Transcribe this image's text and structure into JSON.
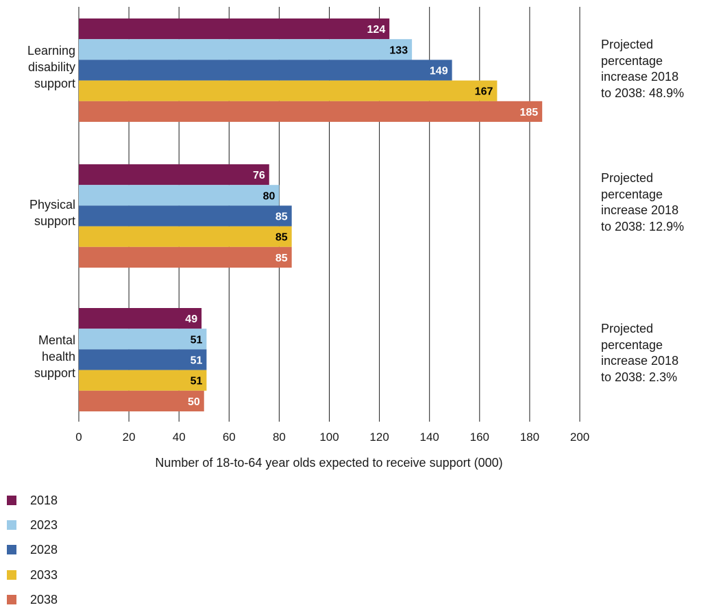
{
  "chart_data": {
    "type": "bar",
    "orientation": "horizontal",
    "categories": [
      "Learning disability support",
      "Physical support",
      "Mental health support"
    ],
    "category_lines": [
      [
        "Learning",
        "disability",
        "support"
      ],
      [
        "Physical",
        "support"
      ],
      [
        "Mental",
        "health",
        "support"
      ]
    ],
    "series": [
      {
        "name": "2018",
        "values": [
          124,
          76,
          49
        ],
        "color": "#7a1a52",
        "label_color": "#ffffff"
      },
      {
        "name": "2023",
        "values": [
          133,
          80,
          51
        ],
        "color": "#9ccbe8",
        "label_color": "#000000"
      },
      {
        "name": "2028",
        "values": [
          149,
          85,
          51
        ],
        "color": "#3b66a5",
        "label_color": "#ffffff"
      },
      {
        "name": "2033",
        "values": [
          167,
          85,
          51
        ],
        "color": "#e9be2e",
        "label_color": "#000000"
      },
      {
        "name": "2038",
        "values": [
          185,
          85,
          50
        ],
        "color": "#d36c52",
        "label_color": "#ffffff"
      }
    ],
    "xlim": [
      0,
      200
    ],
    "xticks": [
      "0",
      "20",
      "40",
      "60",
      "80",
      "100",
      "120",
      "140",
      "160",
      "180",
      "200"
    ],
    "xlabel": "Number of 18-to-64 year olds expected to receive support (000)",
    "ylabel": "",
    "title": "",
    "grid": "vertical",
    "legend_position": "bottom-left",
    "annotations": [
      "Projected percentage increase 2018 to 2038: 48.9%",
      "Projected percentage increase 2018 to 2038: 12.9%",
      "Projected percentage increase 2018 to 2038: 2.3%"
    ],
    "annotation_lines": [
      [
        "Projected",
        "percentage",
        "increase 2018",
        "to 2038: 48.9%"
      ],
      [
        "Projected",
        "percentage",
        "increase 2018",
        "to 2038: 12.9%"
      ],
      [
        "Projected",
        "percentage",
        "increase 2018",
        "to 2038: 2.3%"
      ]
    ]
  }
}
